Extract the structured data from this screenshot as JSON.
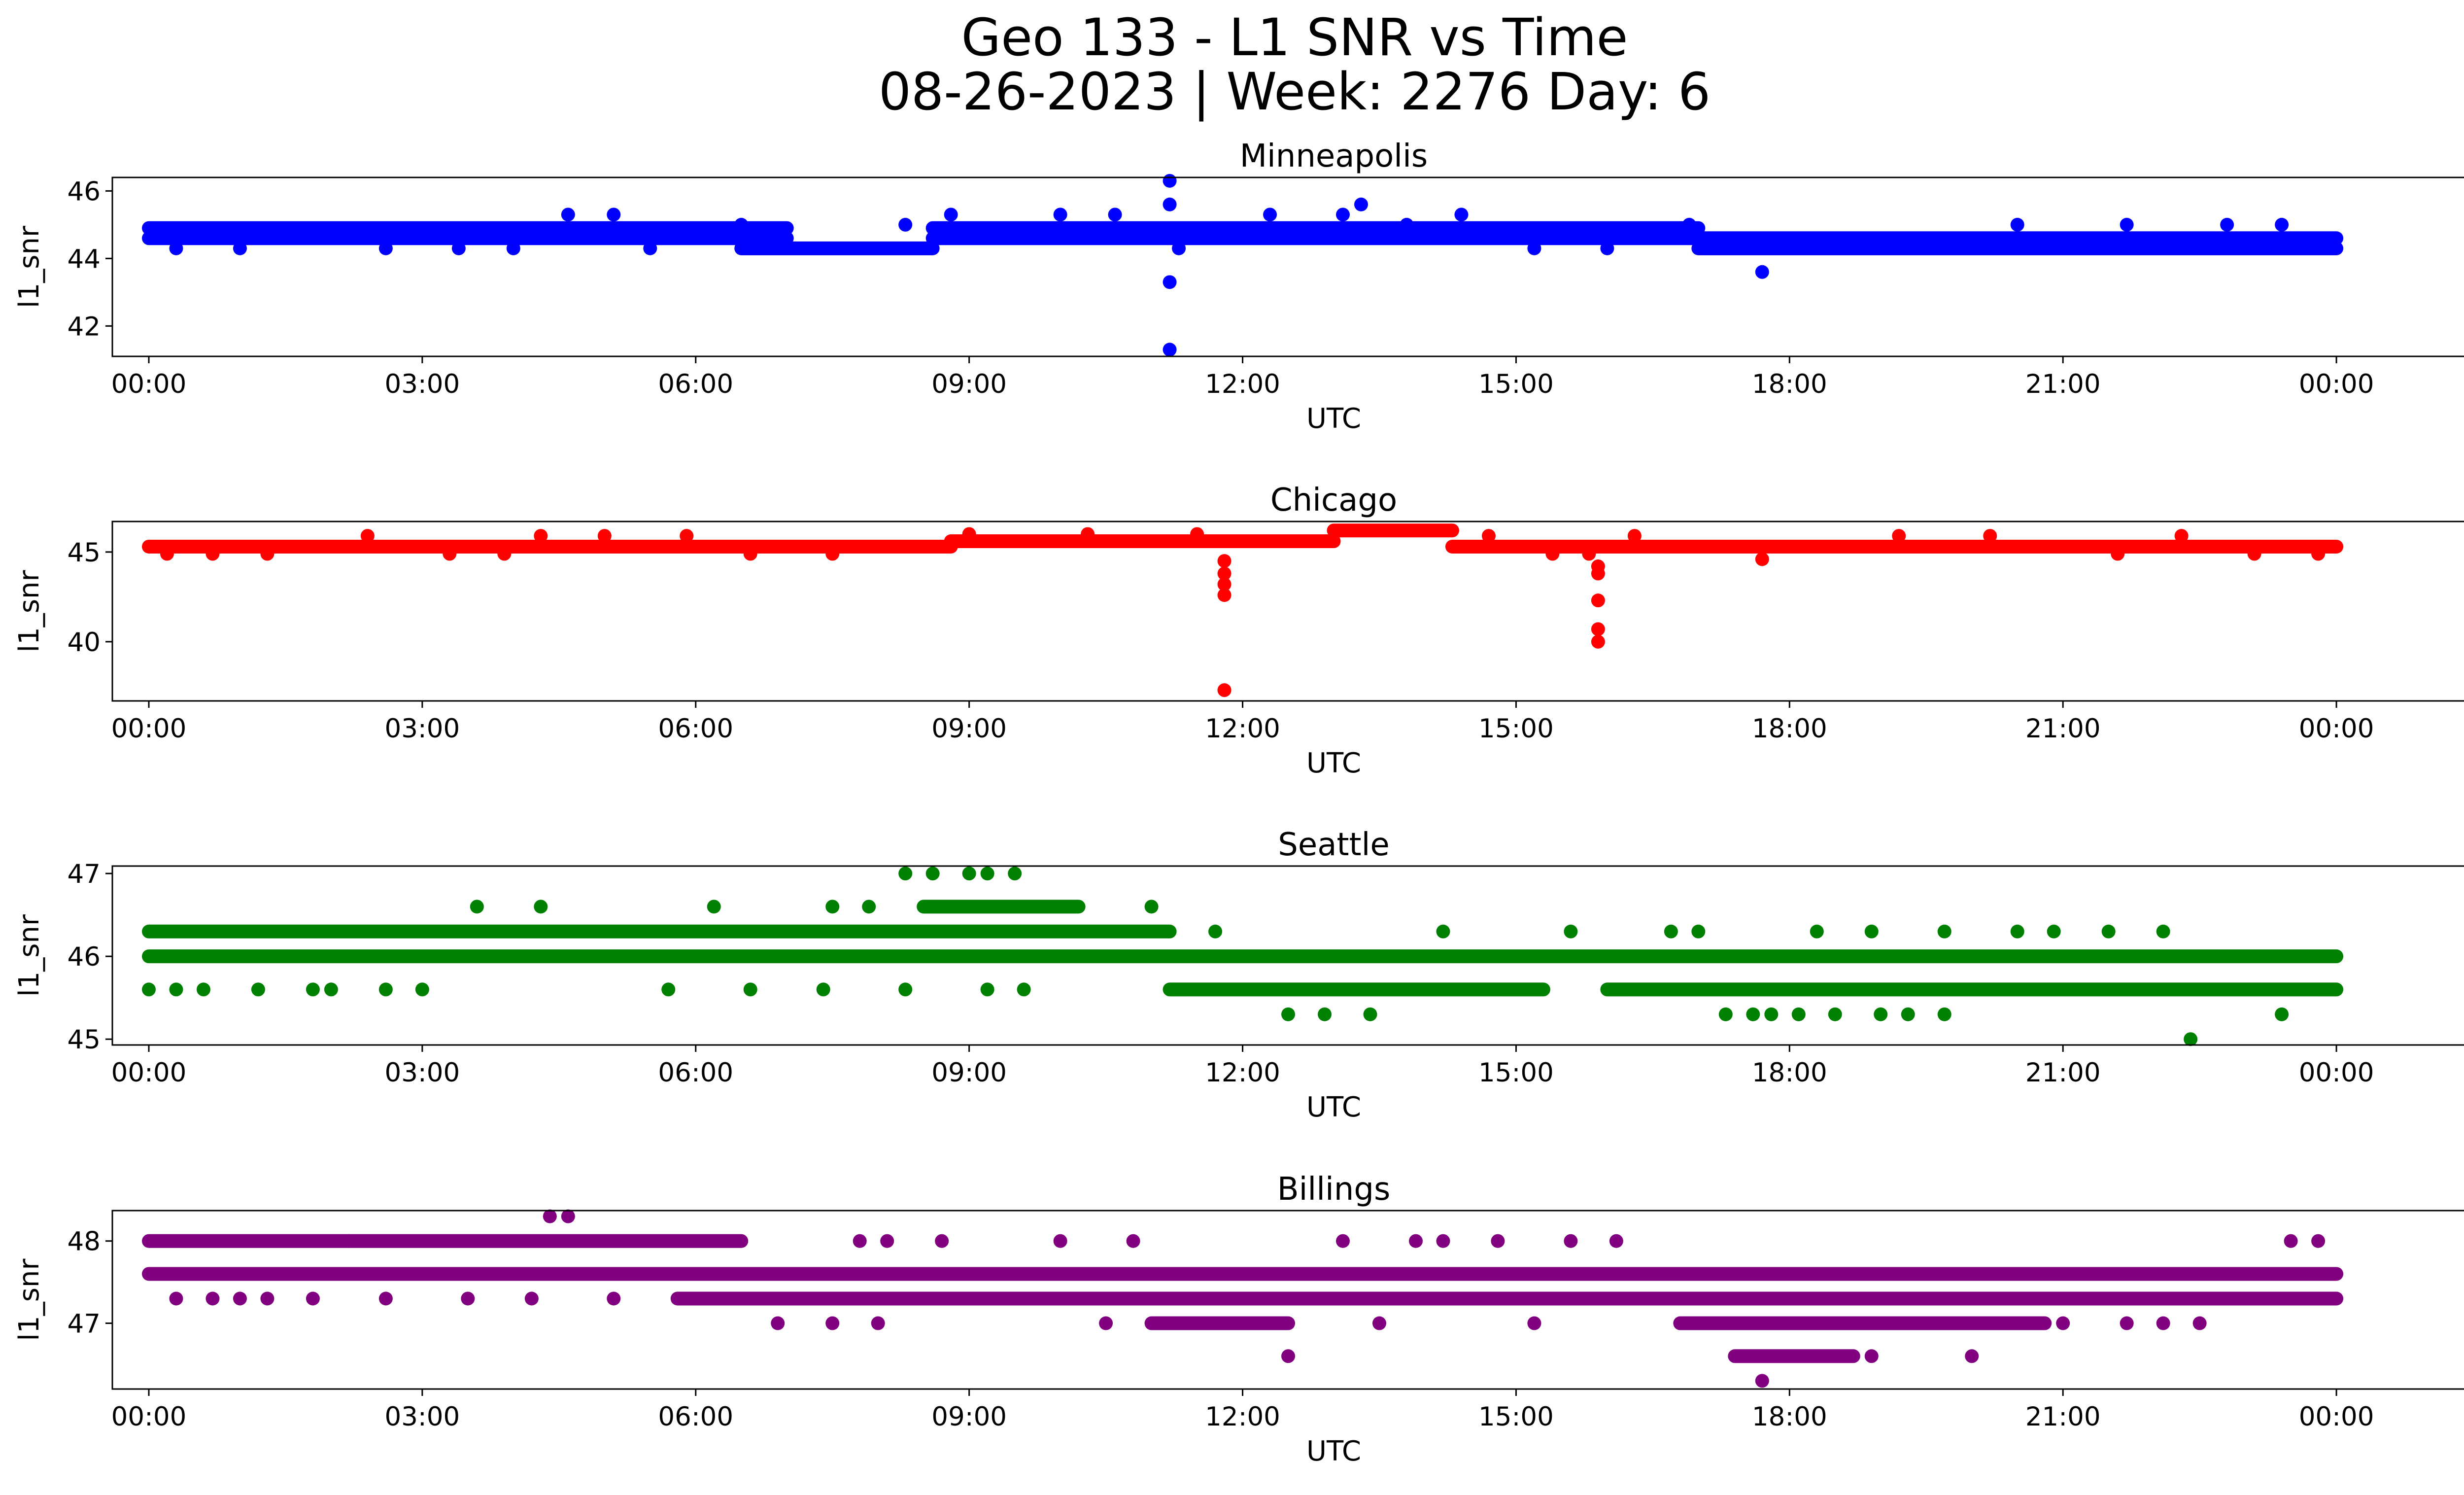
{
  "figure": {
    "title_line1": "Geo 133 - L1 SNR vs Time",
    "title_line2": "08-26-2023 | Week: 2276 Day: 6"
  },
  "chart_data": [
    {
      "type": "scatter",
      "title": "Minneapolis",
      "color": "#0000ff",
      "xlabel": "UTC",
      "ylabel": "l1_snr",
      "xlim": [
        -0.4,
        26.4
      ],
      "ylim": [
        41.1,
        46.4
      ],
      "xticks": [
        0,
        3,
        6,
        9,
        12,
        15,
        18,
        21,
        24
      ],
      "xtick_labels": [
        "00:00",
        "03:00",
        "06:00",
        "09:00",
        "12:00",
        "15:00",
        "18:00",
        "21:00",
        "00:00"
      ],
      "yticks": [
        42,
        44,
        46
      ],
      "bands": [
        {
          "start": 0.0,
          "end": 7.0,
          "y": 44.9
        },
        {
          "start": 0.0,
          "end": 7.0,
          "y": 44.6
        },
        {
          "start": 6.5,
          "end": 8.6,
          "y": 44.3
        },
        {
          "start": 8.6,
          "end": 17.0,
          "y": 44.9
        },
        {
          "start": 8.6,
          "end": 17.0,
          "y": 44.6
        },
        {
          "start": 17.0,
          "end": 24.0,
          "y": 44.6
        },
        {
          "start": 17.0,
          "end": 24.0,
          "y": 44.3
        }
      ],
      "points": [
        {
          "x": 0.3,
          "y": 44.3
        },
        {
          "x": 1.0,
          "y": 44.3
        },
        {
          "x": 2.6,
          "y": 44.3
        },
        {
          "x": 3.4,
          "y": 44.3
        },
        {
          "x": 4.0,
          "y": 44.3
        },
        {
          "x": 4.6,
          "y": 45.3
        },
        {
          "x": 5.1,
          "y": 45.3
        },
        {
          "x": 5.5,
          "y": 44.3
        },
        {
          "x": 6.5,
          "y": 45.0
        },
        {
          "x": 8.3,
          "y": 45.0
        },
        {
          "x": 8.8,
          "y": 45.3
        },
        {
          "x": 10.0,
          "y": 45.3
        },
        {
          "x": 10.6,
          "y": 45.3
        },
        {
          "x": 11.2,
          "y": 46.3
        },
        {
          "x": 11.2,
          "y": 45.6
        },
        {
          "x": 11.2,
          "y": 43.3
        },
        {
          "x": 11.2,
          "y": 41.3
        },
        {
          "x": 11.3,
          "y": 44.3
        },
        {
          "x": 12.3,
          "y": 45.3
        },
        {
          "x": 13.1,
          "y": 45.3
        },
        {
          "x": 13.3,
          "y": 45.6
        },
        {
          "x": 13.8,
          "y": 45.0
        },
        {
          "x": 14.4,
          "y": 45.3
        },
        {
          "x": 15.2,
          "y": 44.3
        },
        {
          "x": 16.0,
          "y": 44.3
        },
        {
          "x": 16.9,
          "y": 45.0
        },
        {
          "x": 17.7,
          "y": 43.6
        },
        {
          "x": 20.5,
          "y": 45.0
        },
        {
          "x": 21.7,
          "y": 45.0
        },
        {
          "x": 22.8,
          "y": 45.0
        },
        {
          "x": 23.4,
          "y": 45.0
        }
      ]
    },
    {
      "type": "scatter",
      "title": "Chicago",
      "color": "#ff0000",
      "xlabel": "UTC",
      "ylabel": "l1_snr",
      "xlim": [
        -0.4,
        26.4
      ],
      "ylim": [
        36.7,
        46.7
      ],
      "xticks": [
        0,
        3,
        6,
        9,
        12,
        15,
        18,
        21,
        24
      ],
      "xtick_labels": [
        "00:00",
        "03:00",
        "06:00",
        "09:00",
        "12:00",
        "15:00",
        "18:00",
        "21:00",
        "00:00"
      ],
      "yticks": [
        40,
        45
      ],
      "bands": [
        {
          "start": 0.0,
          "end": 8.8,
          "y": 45.3
        },
        {
          "start": 8.8,
          "end": 13.0,
          "y": 45.6
        },
        {
          "start": 13.0,
          "end": 14.3,
          "y": 46.2
        },
        {
          "start": 14.3,
          "end": 24.0,
          "y": 45.3
        }
      ],
      "points": [
        {
          "x": 0.2,
          "y": 44.9
        },
        {
          "x": 0.7,
          "y": 44.9
        },
        {
          "x": 1.3,
          "y": 44.9
        },
        {
          "x": 2.4,
          "y": 45.9
        },
        {
          "x": 3.3,
          "y": 44.9
        },
        {
          "x": 3.9,
          "y": 44.9
        },
        {
          "x": 4.3,
          "y": 45.9
        },
        {
          "x": 5.0,
          "y": 45.9
        },
        {
          "x": 5.9,
          "y": 45.9
        },
        {
          "x": 6.6,
          "y": 44.9
        },
        {
          "x": 7.5,
          "y": 44.9
        },
        {
          "x": 9.0,
          "y": 46.0
        },
        {
          "x": 10.3,
          "y": 46.0
        },
        {
          "x": 11.5,
          "y": 46.0
        },
        {
          "x": 11.8,
          "y": 44.5
        },
        {
          "x": 11.8,
          "y": 43.8
        },
        {
          "x": 11.8,
          "y": 43.2
        },
        {
          "x": 11.8,
          "y": 42.6
        },
        {
          "x": 11.8,
          "y": 37.3
        },
        {
          "x": 14.7,
          "y": 45.9
        },
        {
          "x": 15.4,
          "y": 44.9
        },
        {
          "x": 15.8,
          "y": 44.9
        },
        {
          "x": 15.9,
          "y": 44.2
        },
        {
          "x": 15.9,
          "y": 43.8
        },
        {
          "x": 15.9,
          "y": 42.3
        },
        {
          "x": 15.9,
          "y": 40.7
        },
        {
          "x": 15.9,
          "y": 40.0
        },
        {
          "x": 16.3,
          "y": 45.9
        },
        {
          "x": 17.7,
          "y": 44.6
        },
        {
          "x": 19.2,
          "y": 45.9
        },
        {
          "x": 20.2,
          "y": 45.9
        },
        {
          "x": 21.6,
          "y": 44.9
        },
        {
          "x": 22.3,
          "y": 45.9
        },
        {
          "x": 23.1,
          "y": 44.9
        },
        {
          "x": 23.8,
          "y": 44.9
        }
      ]
    },
    {
      "type": "scatter",
      "title": "Seattle",
      "color": "#008000",
      "xlabel": "UTC",
      "ylabel": "l1_snr",
      "xlim": [
        -0.4,
        26.4
      ],
      "ylim": [
        44.93,
        47.09
      ],
      "xticks": [
        0,
        3,
        6,
        9,
        12,
        15,
        18,
        21,
        24
      ],
      "xtick_labels": [
        "00:00",
        "03:00",
        "06:00",
        "09:00",
        "12:00",
        "15:00",
        "18:00",
        "21:00",
        "00:00"
      ],
      "yticks": [
        45,
        46,
        47
      ],
      "bands": [
        {
          "start": 0.0,
          "end": 24.0,
          "y": 46.0
        },
        {
          "start": 0.0,
          "end": 11.2,
          "y": 46.3
        },
        {
          "start": 8.5,
          "end": 10.2,
          "y": 46.6
        },
        {
          "start": 11.2,
          "end": 15.3,
          "y": 45.6
        },
        {
          "start": 16.0,
          "end": 24.0,
          "y": 45.6
        }
      ],
      "points": [
        {
          "x": 0.0,
          "y": 45.6
        },
        {
          "x": 0.3,
          "y": 45.6
        },
        {
          "x": 0.6,
          "y": 45.6
        },
        {
          "x": 1.2,
          "y": 45.6
        },
        {
          "x": 1.8,
          "y": 45.6
        },
        {
          "x": 2.0,
          "y": 45.6
        },
        {
          "x": 2.6,
          "y": 45.6
        },
        {
          "x": 3.0,
          "y": 45.6
        },
        {
          "x": 3.6,
          "y": 46.6
        },
        {
          "x": 4.3,
          "y": 46.6
        },
        {
          "x": 5.7,
          "y": 45.6
        },
        {
          "x": 6.2,
          "y": 46.6
        },
        {
          "x": 6.6,
          "y": 45.6
        },
        {
          "x": 7.4,
          "y": 45.6
        },
        {
          "x": 7.5,
          "y": 46.6
        },
        {
          "x": 7.9,
          "y": 46.6
        },
        {
          "x": 8.3,
          "y": 47.0
        },
        {
          "x": 8.6,
          "y": 47.0
        },
        {
          "x": 8.3,
          "y": 45.6
        },
        {
          "x": 9.0,
          "y": 47.0
        },
        {
          "x": 9.2,
          "y": 47.0
        },
        {
          "x": 9.5,
          "y": 47.0
        },
        {
          "x": 9.2,
          "y": 45.6
        },
        {
          "x": 9.6,
          "y": 45.6
        },
        {
          "x": 11.0,
          "y": 46.6
        },
        {
          "x": 11.7,
          "y": 46.3
        },
        {
          "x": 12.5,
          "y": 45.3
        },
        {
          "x": 12.9,
          "y": 45.3
        },
        {
          "x": 13.4,
          "y": 45.3
        },
        {
          "x": 14.2,
          "y": 46.3
        },
        {
          "x": 15.6,
          "y": 46.3
        },
        {
          "x": 16.7,
          "y": 46.3
        },
        {
          "x": 17.0,
          "y": 46.3
        },
        {
          "x": 17.3,
          "y": 45.3
        },
        {
          "x": 17.6,
          "y": 45.3
        },
        {
          "x": 17.8,
          "y": 45.3
        },
        {
          "x": 18.1,
          "y": 45.3
        },
        {
          "x": 18.3,
          "y": 46.3
        },
        {
          "x": 18.5,
          "y": 45.3
        },
        {
          "x": 18.9,
          "y": 46.3
        },
        {
          "x": 19.0,
          "y": 45.3
        },
        {
          "x": 19.3,
          "y": 45.3
        },
        {
          "x": 19.7,
          "y": 45.3
        },
        {
          "x": 19.7,
          "y": 46.3
        },
        {
          "x": 20.5,
          "y": 46.3
        },
        {
          "x": 20.9,
          "y": 46.3
        },
        {
          "x": 21.5,
          "y": 46.3
        },
        {
          "x": 22.1,
          "y": 46.3
        },
        {
          "x": 22.4,
          "y": 45.0
        },
        {
          "x": 23.4,
          "y": 45.3
        }
      ]
    },
    {
      "type": "scatter",
      "title": "Billings",
      "color": "#800080",
      "xlabel": "UTC",
      "ylabel": "l1_snr",
      "xlim": [
        -0.4,
        26.4
      ],
      "ylim": [
        46.2,
        48.37
      ],
      "xticks": [
        0,
        3,
        6,
        9,
        12,
        15,
        18,
        21,
        24
      ],
      "xtick_labels": [
        "00:00",
        "03:00",
        "06:00",
        "09:00",
        "12:00",
        "15:00",
        "18:00",
        "21:00",
        "00:00"
      ],
      "yticks": [
        47,
        48
      ],
      "bands": [
        {
          "start": 0.0,
          "end": 24.0,
          "y": 47.6
        },
        {
          "start": 0.0,
          "end": 6.5,
          "y": 48.0
        },
        {
          "start": 5.8,
          "end": 24.0,
          "y": 47.3
        },
        {
          "start": 11.0,
          "end": 12.5,
          "y": 47.0
        },
        {
          "start": 16.8,
          "end": 20.8,
          "y": 47.0
        },
        {
          "start": 17.4,
          "end": 18.7,
          "y": 46.6
        }
      ],
      "points": [
        {
          "x": 0.3,
          "y": 47.3
        },
        {
          "x": 0.7,
          "y": 47.3
        },
        {
          "x": 1.0,
          "y": 47.3
        },
        {
          "x": 1.3,
          "y": 47.3
        },
        {
          "x": 1.8,
          "y": 47.3
        },
        {
          "x": 2.2,
          "y": 48.0
        },
        {
          "x": 2.6,
          "y": 47.3
        },
        {
          "x": 3.5,
          "y": 47.3
        },
        {
          "x": 4.2,
          "y": 47.3
        },
        {
          "x": 4.4,
          "y": 48.3
        },
        {
          "x": 4.6,
          "y": 48.3
        },
        {
          "x": 5.1,
          "y": 47.3
        },
        {
          "x": 6.9,
          "y": 47.0
        },
        {
          "x": 7.5,
          "y": 47.0
        },
        {
          "x": 7.8,
          "y": 48.0
        },
        {
          "x": 8.0,
          "y": 47.0
        },
        {
          "x": 8.1,
          "y": 48.0
        },
        {
          "x": 8.7,
          "y": 48.0
        },
        {
          "x": 10.0,
          "y": 48.0
        },
        {
          "x": 10.5,
          "y": 47.0
        },
        {
          "x": 10.8,
          "y": 48.0
        },
        {
          "x": 12.0,
          "y": 47.6
        },
        {
          "x": 12.5,
          "y": 46.6
        },
        {
          "x": 13.1,
          "y": 48.0
        },
        {
          "x": 13.5,
          "y": 47.0
        },
        {
          "x": 13.9,
          "y": 48.0
        },
        {
          "x": 14.2,
          "y": 48.0
        },
        {
          "x": 14.8,
          "y": 48.0
        },
        {
          "x": 15.2,
          "y": 47.0
        },
        {
          "x": 15.6,
          "y": 48.0
        },
        {
          "x": 16.1,
          "y": 48.0
        },
        {
          "x": 16.6,
          "y": 47.3
        },
        {
          "x": 17.2,
          "y": 47.6
        },
        {
          "x": 17.7,
          "y": 46.3
        },
        {
          "x": 18.9,
          "y": 46.6
        },
        {
          "x": 19.6,
          "y": 47.3
        },
        {
          "x": 20.0,
          "y": 46.6
        },
        {
          "x": 20.9,
          "y": 47.6
        },
        {
          "x": 21.0,
          "y": 47.0
        },
        {
          "x": 21.7,
          "y": 47.0
        },
        {
          "x": 22.1,
          "y": 47.0
        },
        {
          "x": 22.5,
          "y": 47.0
        },
        {
          "x": 23.5,
          "y": 48.0
        },
        {
          "x": 23.8,
          "y": 48.0
        }
      ]
    }
  ]
}
